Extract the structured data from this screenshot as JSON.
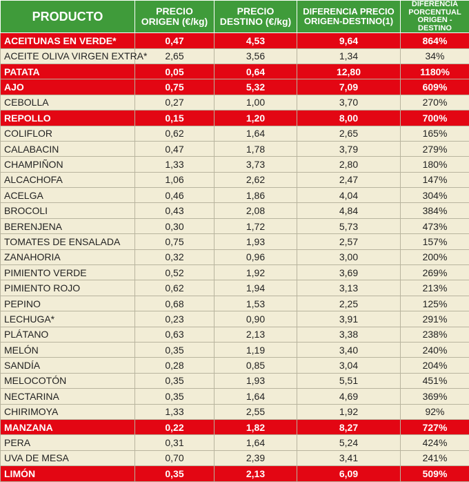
{
  "table": {
    "header": [
      "PRODUCTO",
      "PRECIO ORIGEN (€/kg)",
      "PRECIO DESTINO (€/kg)",
      "DIFERENCIA PRECIO ORIGEN-DESTINO(1)",
      "DIFERENCIA PORCENTUAL ORIGEN - DESTINO"
    ],
    "rows": [
      [
        "ACEITUNAS EN VERDE*",
        "0,47",
        "4,53",
        "9,64",
        "864%"
      ],
      [
        "ACEITE OLIVA VIRGEN EXTRA*",
        "2,65",
        "3,56",
        "1,34",
        "34%"
      ],
      [
        "PATATA",
        "0,05",
        "0,64",
        "12,80",
        "1180%"
      ],
      [
        "AJO",
        "0,75",
        "5,32",
        "7,09",
        "609%"
      ],
      [
        "CEBOLLA",
        "0,27",
        "1,00",
        "3,70",
        "270%"
      ],
      [
        "REPOLLO",
        "0,15",
        "1,20",
        "8,00",
        "700%"
      ],
      [
        "COLIFLOR",
        "0,62",
        "1,64",
        "2,65",
        "165%"
      ],
      [
        "CALABACIN",
        "0,47",
        "1,78",
        "3,79",
        "279%"
      ],
      [
        "CHAMPIÑON",
        "1,33",
        "3,73",
        "2,80",
        "180%"
      ],
      [
        "ALCACHOFA",
        "1,06",
        "2,62",
        "2,47",
        "147%"
      ],
      [
        "ACELGA",
        "0,46",
        "1,86",
        "4,04",
        "304%"
      ],
      [
        "BROCOLI",
        "0,43",
        "2,08",
        "4,84",
        "384%"
      ],
      [
        "BERENJENA",
        "0,30",
        "1,72",
        "5,73",
        "473%"
      ],
      [
        "TOMATES DE ENSALADA",
        "0,75",
        "1,93",
        "2,57",
        "157%"
      ],
      [
        "ZANAHORIA",
        "0,32",
        "0,96",
        "3,00",
        "200%"
      ],
      [
        "PIMIENTO VERDE",
        "0,52",
        "1,92",
        "3,69",
        "269%"
      ],
      [
        "PIMIENTO ROJO",
        "0,62",
        "1,94",
        "3,13",
        "213%"
      ],
      [
        "PEPINO",
        "0,68",
        "1,53",
        "2,25",
        "125%"
      ],
      [
        "LECHUGA*",
        "0,23",
        "0,90",
        "3,91",
        "291%"
      ],
      [
        "PLÁTANO",
        "0,63",
        "2,13",
        "3,38",
        "238%"
      ],
      [
        "MELÓN",
        "0,35",
        "1,19",
        "3,40",
        "240%"
      ],
      [
        "SANDÍA",
        "0,28",
        "0,85",
        "3,04",
        "204%"
      ],
      [
        "MELOCOTÓN",
        "0,35",
        "1,93",
        "5,51",
        "451%"
      ],
      [
        "NECTARINA",
        "0,35",
        "1,64",
        "4,69",
        "369%"
      ],
      [
        "CHIRIMOYA",
        "1,33",
        "2,55",
        "1,92",
        "92%"
      ],
      [
        "MANZANA",
        "0,22",
        "1,82",
        "8,27",
        "727%"
      ],
      [
        "PERA",
        "0,31",
        "1,64",
        "5,24",
        "424%"
      ],
      [
        "UVA DE MESA",
        "0,70",
        "2,39",
        "3,41",
        "241%"
      ],
      [
        "LIMÓN",
        "0,35",
        "2,13",
        "6,09",
        "509%"
      ]
    ]
  }
}
